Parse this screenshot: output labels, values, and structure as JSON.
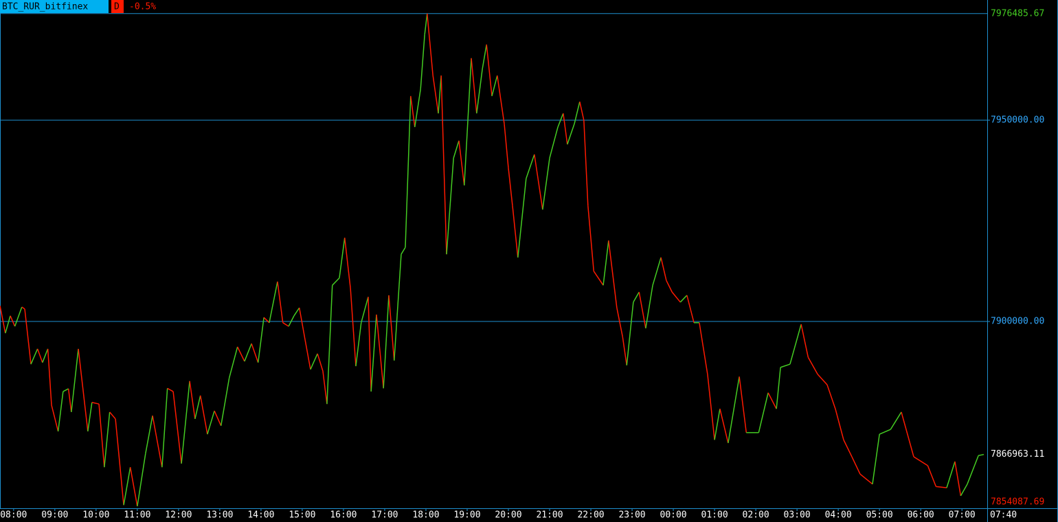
{
  "chart_data": {
    "type": "line",
    "symbol": "BTC_RUR_bitfinex",
    "timeframe": "D",
    "change": "-0.5%",
    "current_time": "07:40",
    "up_color": "#44cc22",
    "down_color": "#ff1a00",
    "grid_color": "#1e90d0",
    "x": [
      -0.33,
      -0.2,
      -0.08,
      0.03,
      0.2,
      0.27,
      0.42,
      0.58,
      0.7,
      0.83,
      0.92,
      1.08,
      1.2,
      1.33,
      1.4,
      1.57,
      1.8,
      1.9,
      2.07,
      2.2,
      2.33,
      2.47,
      2.67,
      2.83,
      3.0,
      3.2,
      3.37,
      3.6,
      3.73,
      3.87,
      4.07,
      4.27,
      4.4,
      4.53,
      4.7,
      4.87,
      5.03,
      5.23,
      5.43,
      5.6,
      5.77,
      5.93,
      6.07,
      6.2,
      6.4,
      6.53,
      6.67,
      6.8,
      6.93,
      7.07,
      7.2,
      7.37,
      7.5,
      7.6,
      7.73,
      7.9,
      8.03,
      8.17,
      8.3,
      8.43,
      8.6,
      8.67,
      8.8,
      8.97,
      9.1,
      9.23,
      9.4,
      9.5,
      9.63,
      9.73,
      9.87,
      9.97,
      10.03,
      10.17,
      10.3,
      10.37,
      10.5,
      10.67,
      10.8,
      10.93,
      11.1,
      11.23,
      11.37,
      11.47,
      11.6,
      11.73,
      11.9,
      12.0,
      12.1,
      12.23,
      12.43,
      12.63,
      12.83,
      13.0,
      13.2,
      13.33,
      13.43,
      13.6,
      13.73,
      13.83,
      13.93,
      14.07,
      14.3,
      14.43,
      14.63,
      14.77,
      14.87,
      15.03,
      15.17,
      15.33,
      15.5,
      15.7,
      15.83,
      15.97,
      16.17,
      16.33,
      16.5,
      16.63,
      16.83,
      17.0,
      17.13,
      17.33,
      17.6,
      17.77,
      18.07,
      18.3,
      18.5,
      18.6,
      18.83,
      19.1,
      19.27,
      19.5,
      19.73,
      19.93,
      20.13,
      20.33,
      20.53,
      20.83,
      21.0,
      21.27,
      21.53,
      21.83,
      22.17,
      22.37,
      22.63,
      22.83,
      22.97,
      23.13,
      23.4,
      23.53
    ],
    "values": [
      7903900,
      7897100,
      7901400,
      7898800,
      7903600,
      7903100,
      7889400,
      7893200,
      7889800,
      7893200,
      7879200,
      7872700,
      7882600,
      7883300,
      7877500,
      7893200,
      7872700,
      7879900,
      7879500,
      7863800,
      7877500,
      7875800,
      7854400,
      7863800,
      7854100,
      7867200,
      7876600,
      7863800,
      7883400,
      7882600,
      7864700,
      7885200,
      7875800,
      7881600,
      7872000,
      7877800,
      7874100,
      7886000,
      7893700,
      7890100,
      7894500,
      7889800,
      7901000,
      7899700,
      7909900,
      7899700,
      7898800,
      7901400,
      7903400,
      7895400,
      7888100,
      7892000,
      7887700,
      7879500,
      7909000,
      7910800,
      7920800,
      7908200,
      7888900,
      7899700,
      7906100,
      7882600,
      7901700,
      7883400,
      7906500,
      7890300,
      7916700,
      7918400,
      7956000,
      7948300,
      7957700,
      7971300,
      7976485.67,
      7961100,
      7951700,
      7961100,
      7916700,
      7940600,
      7944900,
      7933800,
      7965400,
      7951700,
      7962800,
      7968800,
      7956000,
      7961100,
      7949100,
      7938100,
      7928700,
      7915900,
      7935500,
      7941500,
      7927800,
      7940600,
      7948300,
      7951700,
      7944000,
      7949100,
      7954600,
      7950000,
      7928700,
      7912500,
      7909000,
      7920100,
      7903400,
      7896200,
      7889100,
      7904800,
      7907300,
      7898300,
      7909000,
      7915900,
      7910200,
      7907300,
      7904800,
      7906500,
      7899700,
      7899700,
      7886900,
      7870600,
      7878300,
      7869800,
      7886300,
      7872400,
      7872400,
      7882300,
      7878300,
      7888600,
      7889400,
      7899300,
      7891100,
      7886900,
      7884300,
      7878300,
      7870600,
      7866400,
      7862100,
      7859600,
      7872000,
      7873200,
      7877500,
      7866400,
      7864200,
      7859000,
      7858700,
      7865200,
      7856700,
      7859600,
      7866700,
      7866963.11
    ],
    "xlim": [
      -0.33,
      23.53
    ],
    "ylim": [
      7853600,
      7979860
    ],
    "xticks": [
      {
        "value": 0,
        "label": "08:00"
      },
      {
        "value": 1,
        "label": "09:00"
      },
      {
        "value": 2,
        "label": "10:00"
      },
      {
        "value": 3,
        "label": "11:00"
      },
      {
        "value": 4,
        "label": "12:00"
      },
      {
        "value": 5,
        "label": "13:00"
      },
      {
        "value": 6,
        "label": "14:00"
      },
      {
        "value": 7,
        "label": "15:00"
      },
      {
        "value": 8,
        "label": "16:00"
      },
      {
        "value": 9,
        "label": "17:00"
      },
      {
        "value": 10,
        "label": "18:00"
      },
      {
        "value": 11,
        "label": "19:00"
      },
      {
        "value": 12,
        "label": "20:00"
      },
      {
        "value": 13,
        "label": "21:00"
      },
      {
        "value": 14,
        "label": "22:00"
      },
      {
        "value": 15,
        "label": "23:00"
      },
      {
        "value": 16,
        "label": "00:00"
      },
      {
        "value": 17,
        "label": "01:00"
      },
      {
        "value": 18,
        "label": "02:00"
      },
      {
        "value": 19,
        "label": "03:00"
      },
      {
        "value": 20,
        "label": "04:00"
      },
      {
        "value": 21,
        "label": "05:00"
      },
      {
        "value": 22,
        "label": "06:00"
      },
      {
        "value": 23,
        "label": "07:00"
      }
    ],
    "yticks": [
      {
        "value": 7950000,
        "label": "7950000.00"
      },
      {
        "value": 7900000,
        "label": "7900000.00"
      }
    ],
    "grid": true,
    "price_markers": [
      {
        "value": 7976485.67,
        "label": "7976485.67",
        "color": "#44cc22",
        "line": true
      },
      {
        "value": 7866963.11,
        "label": "7866963.11",
        "color": "#ffffff",
        "line": false
      },
      {
        "value": 7854087.69,
        "label": "7854087.69",
        "color": "#ff1a00",
        "line": false
      }
    ]
  }
}
